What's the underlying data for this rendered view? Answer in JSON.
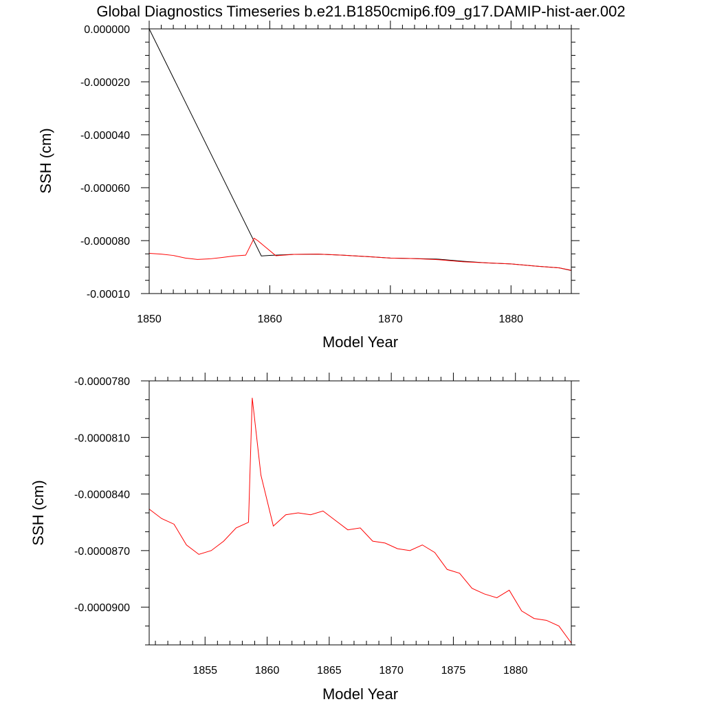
{
  "title": "Global Diagnostics Timeseries b.e21.B1850cmip6.f09_g17.DAMIP-hist-aer.002",
  "colors": {
    "black_series": "#000000",
    "red_series": "#ff0000",
    "axes": "#000000",
    "background": "#ffffff"
  },
  "chart_data": [
    {
      "type": "line",
      "title": "Global Diagnostics Timeseries b.e21.B1850cmip6.f09_g17.DAMIP-hist-aer.002",
      "xlabel": "Model Year",
      "ylabel": "SSH (cm)",
      "xlim": [
        1850,
        1885
      ],
      "ylim": [
        -0.0001,
        0.0
      ],
      "xticks": [
        1850,
        1860,
        1870,
        1880
      ],
      "xtick_labels": [
        "1850",
        "1860",
        "1870",
        "1880"
      ],
      "yticks": [
        0.0,
        -2e-05,
        -4e-05,
        -6e-05,
        -8e-05,
        -0.0001
      ],
      "ytick_labels": [
        "0.000000",
        "-0.000020",
        "-0.000040",
        "-0.000060",
        "-0.000080",
        "-0.00010"
      ],
      "grid": false,
      "series": [
        {
          "color": "#000000",
          "x": [
            1850.0,
            1859.3,
            1860.0,
            1862.0,
            1864.0,
            1866.0,
            1868.0,
            1870.0,
            1872.0,
            1874.0,
            1876.0,
            1878.0,
            1880.0,
            1882.0,
            1884.0,
            1885.0
          ],
          "y": [
            0.0,
            -8.58e-05,
            -8.56e-05,
            -8.52e-05,
            -8.51e-05,
            -8.55e-05,
            -8.6e-05,
            -8.66e-05,
            -8.68e-05,
            -8.7e-05,
            -8.78e-05,
            -8.84e-05,
            -8.88e-05,
            -8.96e-05,
            -9.03e-05,
            -9.13e-05
          ]
        },
        {
          "color": "#ff0000",
          "x": [
            1850.0,
            1851.0,
            1852.0,
            1853.0,
            1854.0,
            1855.0,
            1856.0,
            1857.0,
            1858.0,
            1858.7,
            1859.0,
            1860.5,
            1862.0,
            1864.0,
            1866.0,
            1868.0,
            1870.0,
            1872.0,
            1874.0,
            1876.0,
            1878.0,
            1880.0,
            1882.0,
            1884.0,
            1885.0
          ],
          "y": [
            -8.48e-05,
            -8.51e-05,
            -8.56e-05,
            -8.66e-05,
            -8.71e-05,
            -8.69e-05,
            -8.64e-05,
            -8.58e-05,
            -8.55e-05,
            -7.91e-05,
            -8e-05,
            -8.57e-05,
            -8.52e-05,
            -8.51e-05,
            -8.55e-05,
            -8.6e-05,
            -8.66e-05,
            -8.68e-05,
            -8.72e-05,
            -8.8e-05,
            -8.84e-05,
            -8.88e-05,
            -8.96e-05,
            -9.03e-05,
            -9.12e-05
          ]
        }
      ]
    },
    {
      "type": "line",
      "title": "",
      "xlabel": "Model Year",
      "ylabel": "SSH (cm)",
      "xlim": [
        1850.5,
        1884.5
      ],
      "ylim": [
        -9.2e-05,
        -7.8e-05
      ],
      "xticks": [
        1855,
        1860,
        1865,
        1870,
        1875,
        1880
      ],
      "xtick_labels": [
        "1855",
        "1860",
        "1865",
        "1870",
        "1875",
        "1880"
      ],
      "yticks": [
        -7.8e-05,
        -8.1e-05,
        -8.4e-05,
        -8.7e-05,
        -9e-05
      ],
      "ytick_labels": [
        "-0.0000780",
        "-0.0000810",
        "-0.0000840",
        "-0.0000870",
        "-0.0000900"
      ],
      "grid": false,
      "series": [
        {
          "color": "#ff0000",
          "x": [
            1850.5,
            1851.5,
            1852.5,
            1853.5,
            1854.5,
            1855.5,
            1856.5,
            1857.5,
            1858.5,
            1858.8,
            1859.5,
            1860.5,
            1861.5,
            1862.5,
            1863.5,
            1864.5,
            1865.5,
            1866.5,
            1867.5,
            1868.5,
            1869.5,
            1870.5,
            1871.5,
            1872.5,
            1873.5,
            1874.5,
            1875.5,
            1876.5,
            1877.5,
            1878.5,
            1879.5,
            1880.5,
            1881.5,
            1882.5,
            1883.5,
            1884.5
          ],
          "y": [
            -8.48e-05,
            -8.53e-05,
            -8.56e-05,
            -8.67e-05,
            -8.72e-05,
            -8.7e-05,
            -8.65e-05,
            -8.58e-05,
            -8.55e-05,
            -7.89e-05,
            -8.3e-05,
            -8.57e-05,
            -8.51e-05,
            -8.5e-05,
            -8.51e-05,
            -8.49e-05,
            -8.54e-05,
            -8.59e-05,
            -8.58e-05,
            -8.65e-05,
            -8.66e-05,
            -8.69e-05,
            -8.7e-05,
            -8.67e-05,
            -8.71e-05,
            -8.8e-05,
            -8.82e-05,
            -8.9e-05,
            -8.93e-05,
            -8.95e-05,
            -8.91e-05,
            -9.02e-05,
            -9.06e-05,
            -9.07e-05,
            -9.1e-05,
            -9.19e-05
          ]
        }
      ]
    }
  ]
}
